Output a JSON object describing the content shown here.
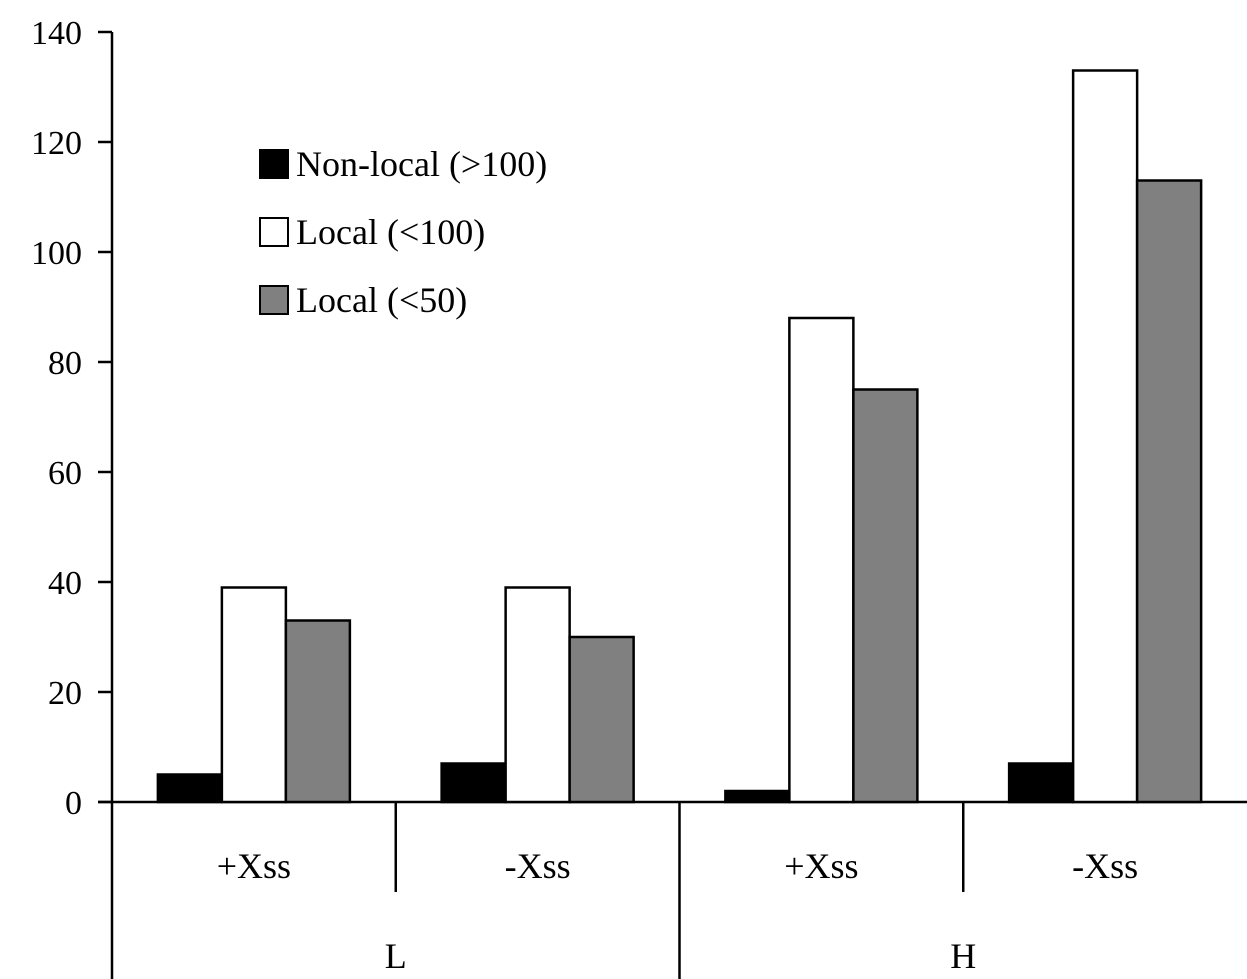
{
  "chart_data": {
    "type": "bar",
    "title": "",
    "xlabel": "",
    "ylabel": "",
    "ylim": [
      0,
      140
    ],
    "yticks": [
      0,
      20,
      40,
      60,
      80,
      100,
      120,
      140
    ],
    "grid": false,
    "legend_position": "top-left",
    "groups": [
      {
        "label": "L",
        "categories": [
          "+Xss",
          "-Xss"
        ]
      },
      {
        "label": "H",
        "categories": [
          "+Xss",
          "-Xss"
        ]
      }
    ],
    "categories": [
      "+Xss",
      "-Xss",
      "+Xss",
      "-Xss"
    ],
    "series": [
      {
        "name": "Non-local (>100)",
        "color": "#000000",
        "values": [
          5,
          7,
          2,
          7
        ]
      },
      {
        "name": "Local (<100)",
        "color": "#ffffff",
        "values": [
          39,
          39,
          88,
          133
        ]
      },
      {
        "name": "Local (<50)",
        "color": "#808080",
        "values": [
          33,
          30,
          75,
          113
        ]
      }
    ]
  }
}
